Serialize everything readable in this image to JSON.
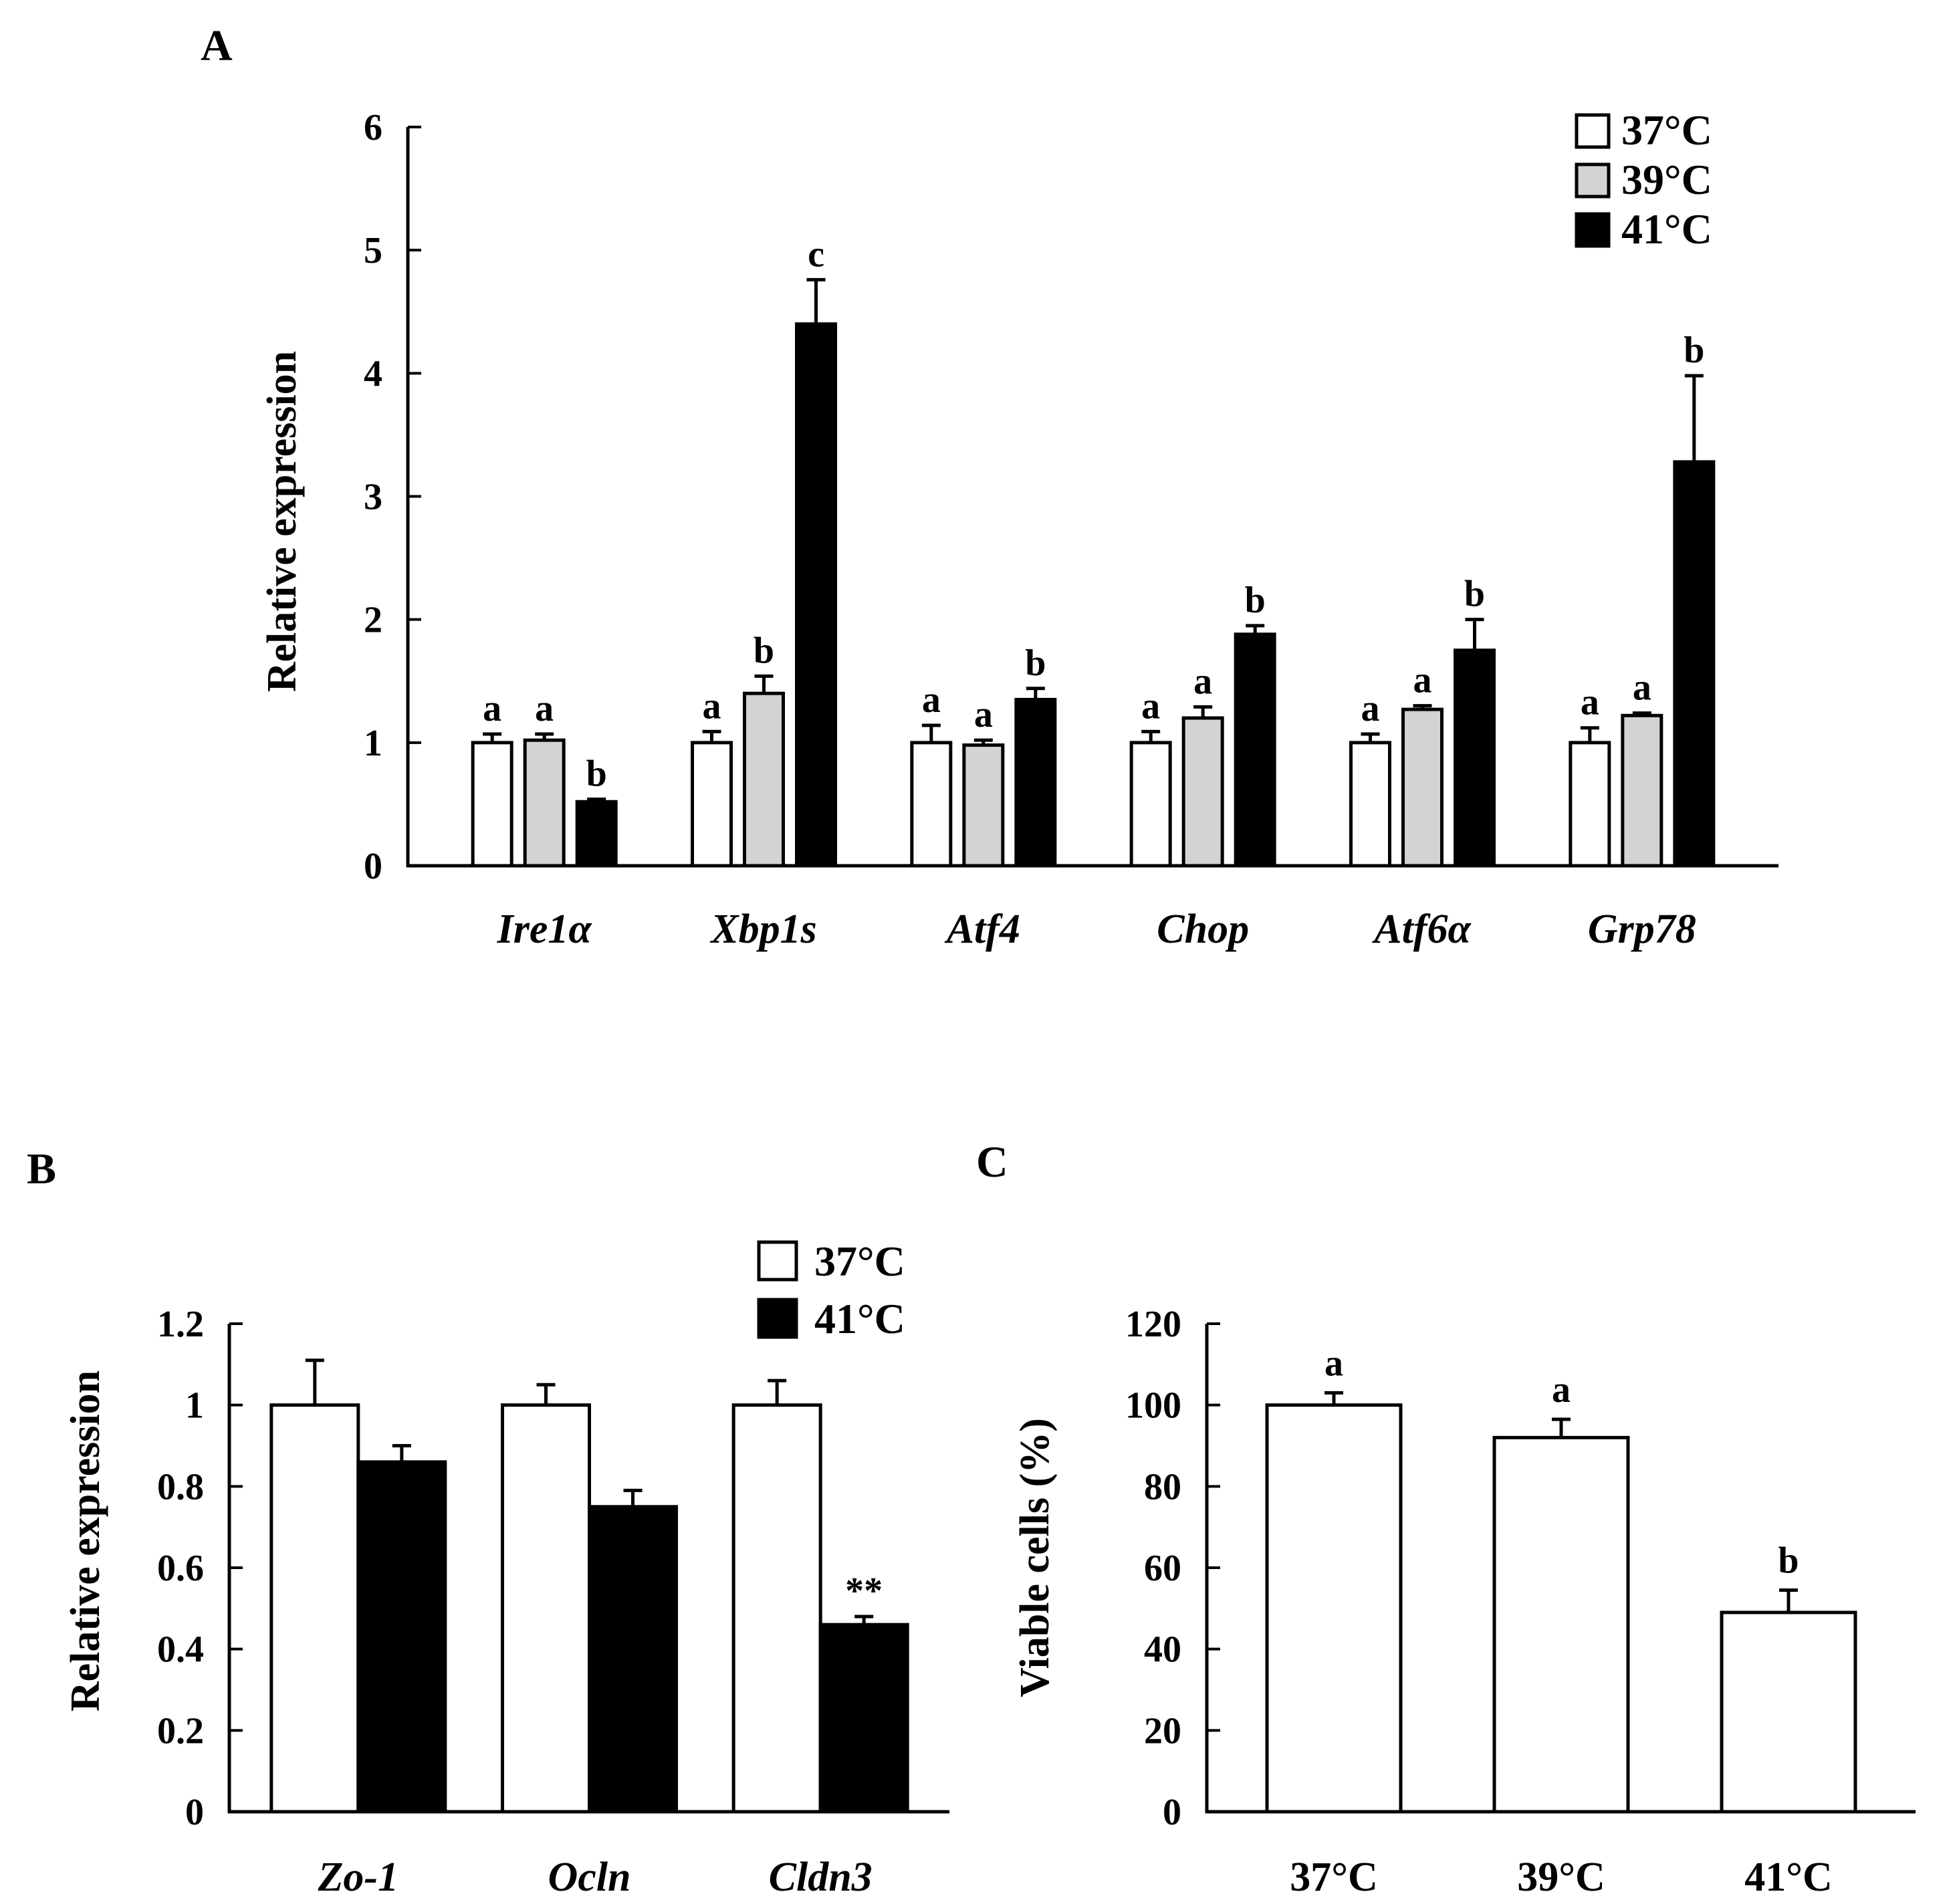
{
  "chart_data": [
    {
      "panel": "A",
      "type": "bar",
      "title": "",
      "xlabel": "",
      "ylabel": "Relative expression",
      "ylim": [
        0,
        6
      ],
      "yticks": [
        "0",
        "1",
        "2",
        "3",
        "4",
        "5",
        "6"
      ],
      "categories": [
        "Ire1α",
        "Xbp1s",
        "Atf4",
        "Chop",
        "Atf6α",
        "Grp78"
      ],
      "category_style": "italic",
      "legend_position": "top-right",
      "colors": [
        "#ffffff",
        "#d3d3d3",
        "#000000"
      ],
      "series": [
        {
          "name": "37°C",
          "values": [
            1.0,
            1.0,
            1.0,
            1.0,
            1.0,
            1.0
          ],
          "errors": [
            0.07,
            0.09,
            0.14,
            0.09,
            0.07,
            0.12
          ],
          "labels": [
            "a",
            "a",
            "a",
            "a",
            "a",
            "a"
          ]
        },
        {
          "name": "39°C",
          "values": [
            1.02,
            1.4,
            0.98,
            1.2,
            1.27,
            1.22
          ],
          "errors": [
            0.05,
            0.14,
            0.04,
            0.09,
            0.03,
            0.02
          ],
          "labels": [
            "a",
            "b",
            "a",
            "a",
            "a",
            "a"
          ]
        },
        {
          "name": "41°C",
          "values": [
            0.52,
            4.4,
            1.35,
            1.88,
            1.75,
            3.28
          ],
          "errors": [
            0.02,
            0.36,
            0.09,
            0.07,
            0.25,
            0.7
          ],
          "labels": [
            "b",
            "c",
            "b",
            "b",
            "b",
            "b"
          ]
        }
      ]
    },
    {
      "panel": "B",
      "type": "bar",
      "title": "",
      "xlabel": "",
      "ylabel": "Relative expression",
      "ylim": [
        0,
        1.2
      ],
      "yticks": [
        "0",
        "0.2",
        "0.4",
        "0.6",
        "0.8",
        "1",
        "1.2"
      ],
      "categories": [
        "Zo-1",
        "Ocln",
        "Cldn3"
      ],
      "category_style": "italic",
      "legend_position": "top-right",
      "colors": [
        "#ffffff",
        "#000000"
      ],
      "series": [
        {
          "name": "37°C",
          "values": [
            1.0,
            1.0,
            1.0
          ],
          "errors": [
            0.11,
            0.05,
            0.06
          ],
          "labels": [
            "",
            "",
            ""
          ]
        },
        {
          "name": "41°C",
          "values": [
            0.86,
            0.75,
            0.46
          ],
          "errors": [
            0.04,
            0.04,
            0.02
          ],
          "labels": [
            "",
            "",
            "**"
          ]
        }
      ]
    },
    {
      "panel": "C",
      "type": "bar",
      "title": "",
      "xlabel": "",
      "ylabel": "Viable cells (%)",
      "ylim": [
        0,
        120
      ],
      "yticks": [
        "0",
        "20",
        "40",
        "60",
        "80",
        "100",
        "120"
      ],
      "categories": [
        "37°C",
        "39°C",
        "41°C"
      ],
      "category_style": "normal",
      "colors": [
        "#ffffff",
        "#b3b3b3",
        "#000000"
      ],
      "series": [
        {
          "name": "Viable cells",
          "values": [
            100,
            92,
            49
          ],
          "errors": [
            3,
            4.5,
            5.5
          ],
          "labels": [
            "a",
            "a",
            "b"
          ]
        }
      ]
    }
  ]
}
